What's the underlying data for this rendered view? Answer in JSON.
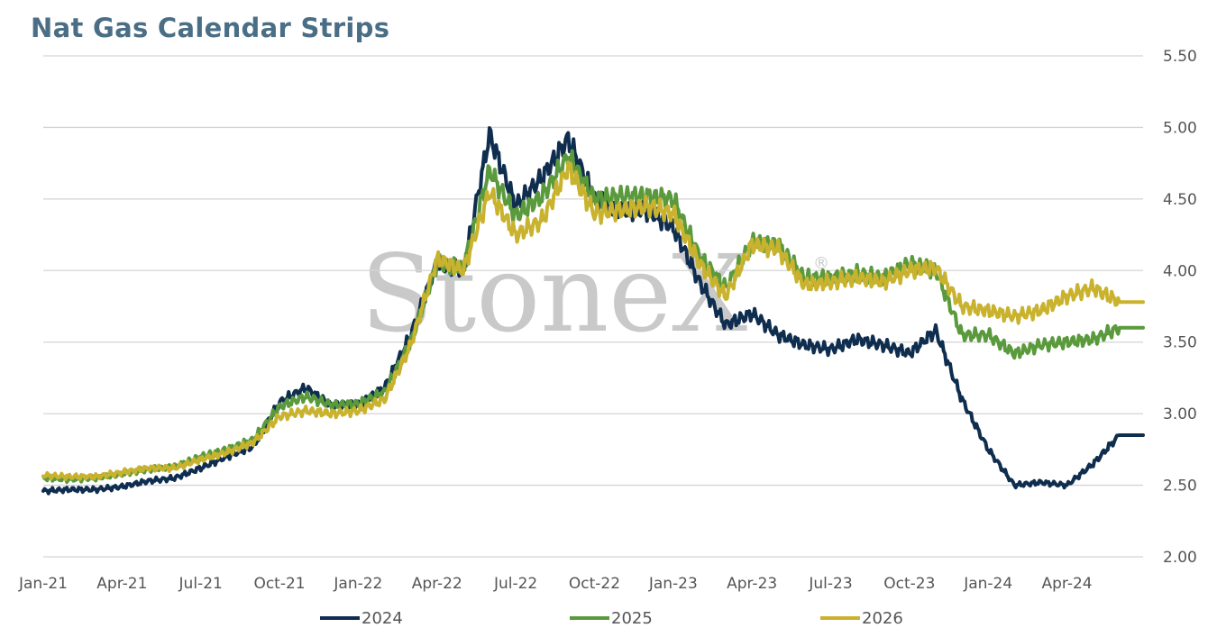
{
  "chart_data": {
    "type": "line",
    "title": "Nat Gas Calendar Strips",
    "watermark": "StoneX",
    "watermark_mark": "®",
    "ylim": [
      2.0,
      5.5
    ],
    "y_ticks": [
      "5.50",
      "5.00",
      "4.50",
      "4.00",
      "3.50",
      "3.00",
      "2.50",
      "2.00"
    ],
    "y_axis_side": "right",
    "grid": true,
    "x_range": [
      "Jan-21",
      "Jun-24"
    ],
    "x_ticks": [
      "Jan-21",
      "Apr-21",
      "Jul-21",
      "Oct-21",
      "Jan-22",
      "Apr-22",
      "Jul-22",
      "Oct-22",
      "Jan-23",
      "Apr-23",
      "Jul-23",
      "Oct-23",
      "Jan-24",
      "Apr-24"
    ],
    "legend_position": "bottom",
    "x": [
      "Jan-21",
      "Feb-21",
      "Mar-21",
      "Apr-21",
      "May-21",
      "Jun-21",
      "Jul-21",
      "Aug-21",
      "Sep-21",
      "Oct-21",
      "Nov-21",
      "Dec-21",
      "Jan-22",
      "Feb-22",
      "Mar-22",
      "Apr-22",
      "May-22",
      "Jun-22",
      "Jul-22",
      "Aug-22",
      "Sep-22",
      "Oct-22",
      "Nov-22",
      "Dec-22",
      "Jan-23",
      "Feb-23",
      "Mar-23",
      "Apr-23",
      "May-23",
      "Jun-23",
      "Jul-23",
      "Aug-23",
      "Sep-23",
      "Oct-23",
      "Nov-23",
      "Dec-23",
      "Jan-24",
      "Feb-24",
      "Mar-24",
      "Apr-24",
      "May-24",
      "Jun-24"
    ],
    "series": [
      {
        "name": "2024",
        "color": "#0f2d4f",
        "values": [
          2.46,
          2.47,
          2.47,
          2.49,
          2.53,
          2.55,
          2.62,
          2.7,
          2.77,
          3.08,
          3.18,
          3.05,
          3.06,
          3.18,
          3.55,
          4.05,
          4.0,
          4.95,
          4.45,
          4.65,
          4.92,
          4.5,
          4.42,
          4.42,
          4.3,
          3.92,
          3.62,
          3.7,
          3.55,
          3.48,
          3.45,
          3.52,
          3.48,
          3.42,
          3.58,
          3.1,
          2.75,
          2.5,
          2.52,
          2.5,
          2.65,
          2.85
        ]
      },
      {
        "name": "2025",
        "color": "#5a9a3d",
        "values": [
          2.55,
          2.54,
          2.55,
          2.58,
          2.61,
          2.63,
          2.7,
          2.75,
          2.82,
          3.05,
          3.12,
          3.06,
          3.07,
          3.15,
          3.5,
          4.05,
          4.02,
          4.7,
          4.38,
          4.52,
          4.8,
          4.5,
          4.52,
          4.52,
          4.5,
          4.1,
          3.88,
          4.2,
          4.18,
          3.95,
          3.95,
          3.98,
          3.95,
          4.05,
          4.0,
          3.55,
          3.55,
          3.42,
          3.48,
          3.5,
          3.52,
          3.6
        ]
      },
      {
        "name": "2026",
        "color": "#c9b22e",
        "values": [
          2.57,
          2.56,
          2.56,
          2.59,
          2.62,
          2.62,
          2.68,
          2.73,
          2.8,
          2.98,
          3.02,
          3.0,
          3.02,
          3.1,
          3.48,
          4.08,
          4.0,
          4.55,
          4.25,
          4.35,
          4.72,
          4.4,
          4.42,
          4.45,
          4.4,
          4.05,
          3.82,
          4.18,
          4.15,
          3.9,
          3.92,
          3.95,
          3.92,
          4.0,
          4.02,
          3.75,
          3.72,
          3.68,
          3.72,
          3.82,
          3.88,
          3.78
        ]
      }
    ]
  }
}
